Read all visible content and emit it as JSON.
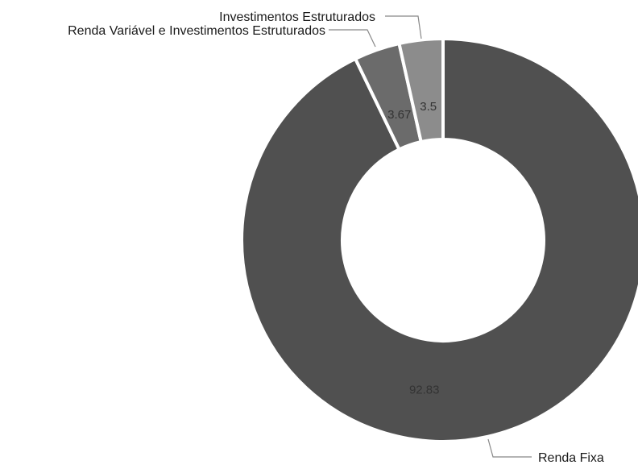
{
  "chart_data": {
    "type": "pie",
    "variant": "donut",
    "title": "",
    "labels": [
      "Renda Fixa",
      "Renda Variável e Investimentos Estruturados",
      "Investimentos Estruturados"
    ],
    "values": [
      92.83,
      3.67,
      3.5
    ],
    "value_labels": [
      "92.83",
      "3.67",
      "3.5"
    ],
    "colors": [
      "#505050",
      "#6b6b6b",
      "#8c8c8c"
    ],
    "legend": "none (outside labels with leader lines)"
  }
}
